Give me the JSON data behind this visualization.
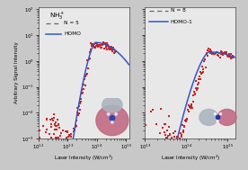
{
  "xlabel": "Laser Intensity (W/cm$^2$)",
  "ylabel": "Arbitrary Signal Intensity",
  "panel1": {
    "xlim_log": [
      12.0,
      15.1
    ],
    "ylim_log": [
      -3.0,
      2.1
    ],
    "title": "NH$_3^+$",
    "legend1_label": "N = 5",
    "legend2_label": "HOMO",
    "dashed_color": "#666666",
    "solid_color": "#3355cc",
    "data_color": "#cc2222",
    "n_exp": 5.0,
    "n_xstart": 12.0,
    "n_xend": 14.85,
    "n_slope": 5.0,
    "n_intercept": -12.5,
    "homo_xstart": 12.88,
    "homo_peak_x": 13.95,
    "homo_peak_y": 0.72,
    "homo_decay": 0.65,
    "homo_rise_slope": 5.8
  },
  "panel2": {
    "xlim_log": [
      13.0,
      15.2
    ],
    "ylim_log": [
      -3.0,
      2.1
    ],
    "legend1_label": "N = 8",
    "legend2_label": "HOMO-1",
    "dashed_color": "#666666",
    "solid_color": "#3355cc",
    "data_color": "#cc2222",
    "n_exp": 8.0,
    "n_xstart": 13.0,
    "n_xend": 15.1,
    "n_slope": 8.0,
    "n_intercept": -17.5,
    "homo_xstart": 13.55,
    "homo_peak_x": 14.55,
    "homo_peak_y": 0.35,
    "homo_decay": 0.52,
    "homo_rise_slope": 5.0
  },
  "bg_color": "#e0e0e0",
  "fig_bg": "#c8c8c8",
  "panel_bg": "#e8e8e8",
  "yticks": [
    -3,
    -2,
    -1,
    0,
    1,
    2
  ]
}
